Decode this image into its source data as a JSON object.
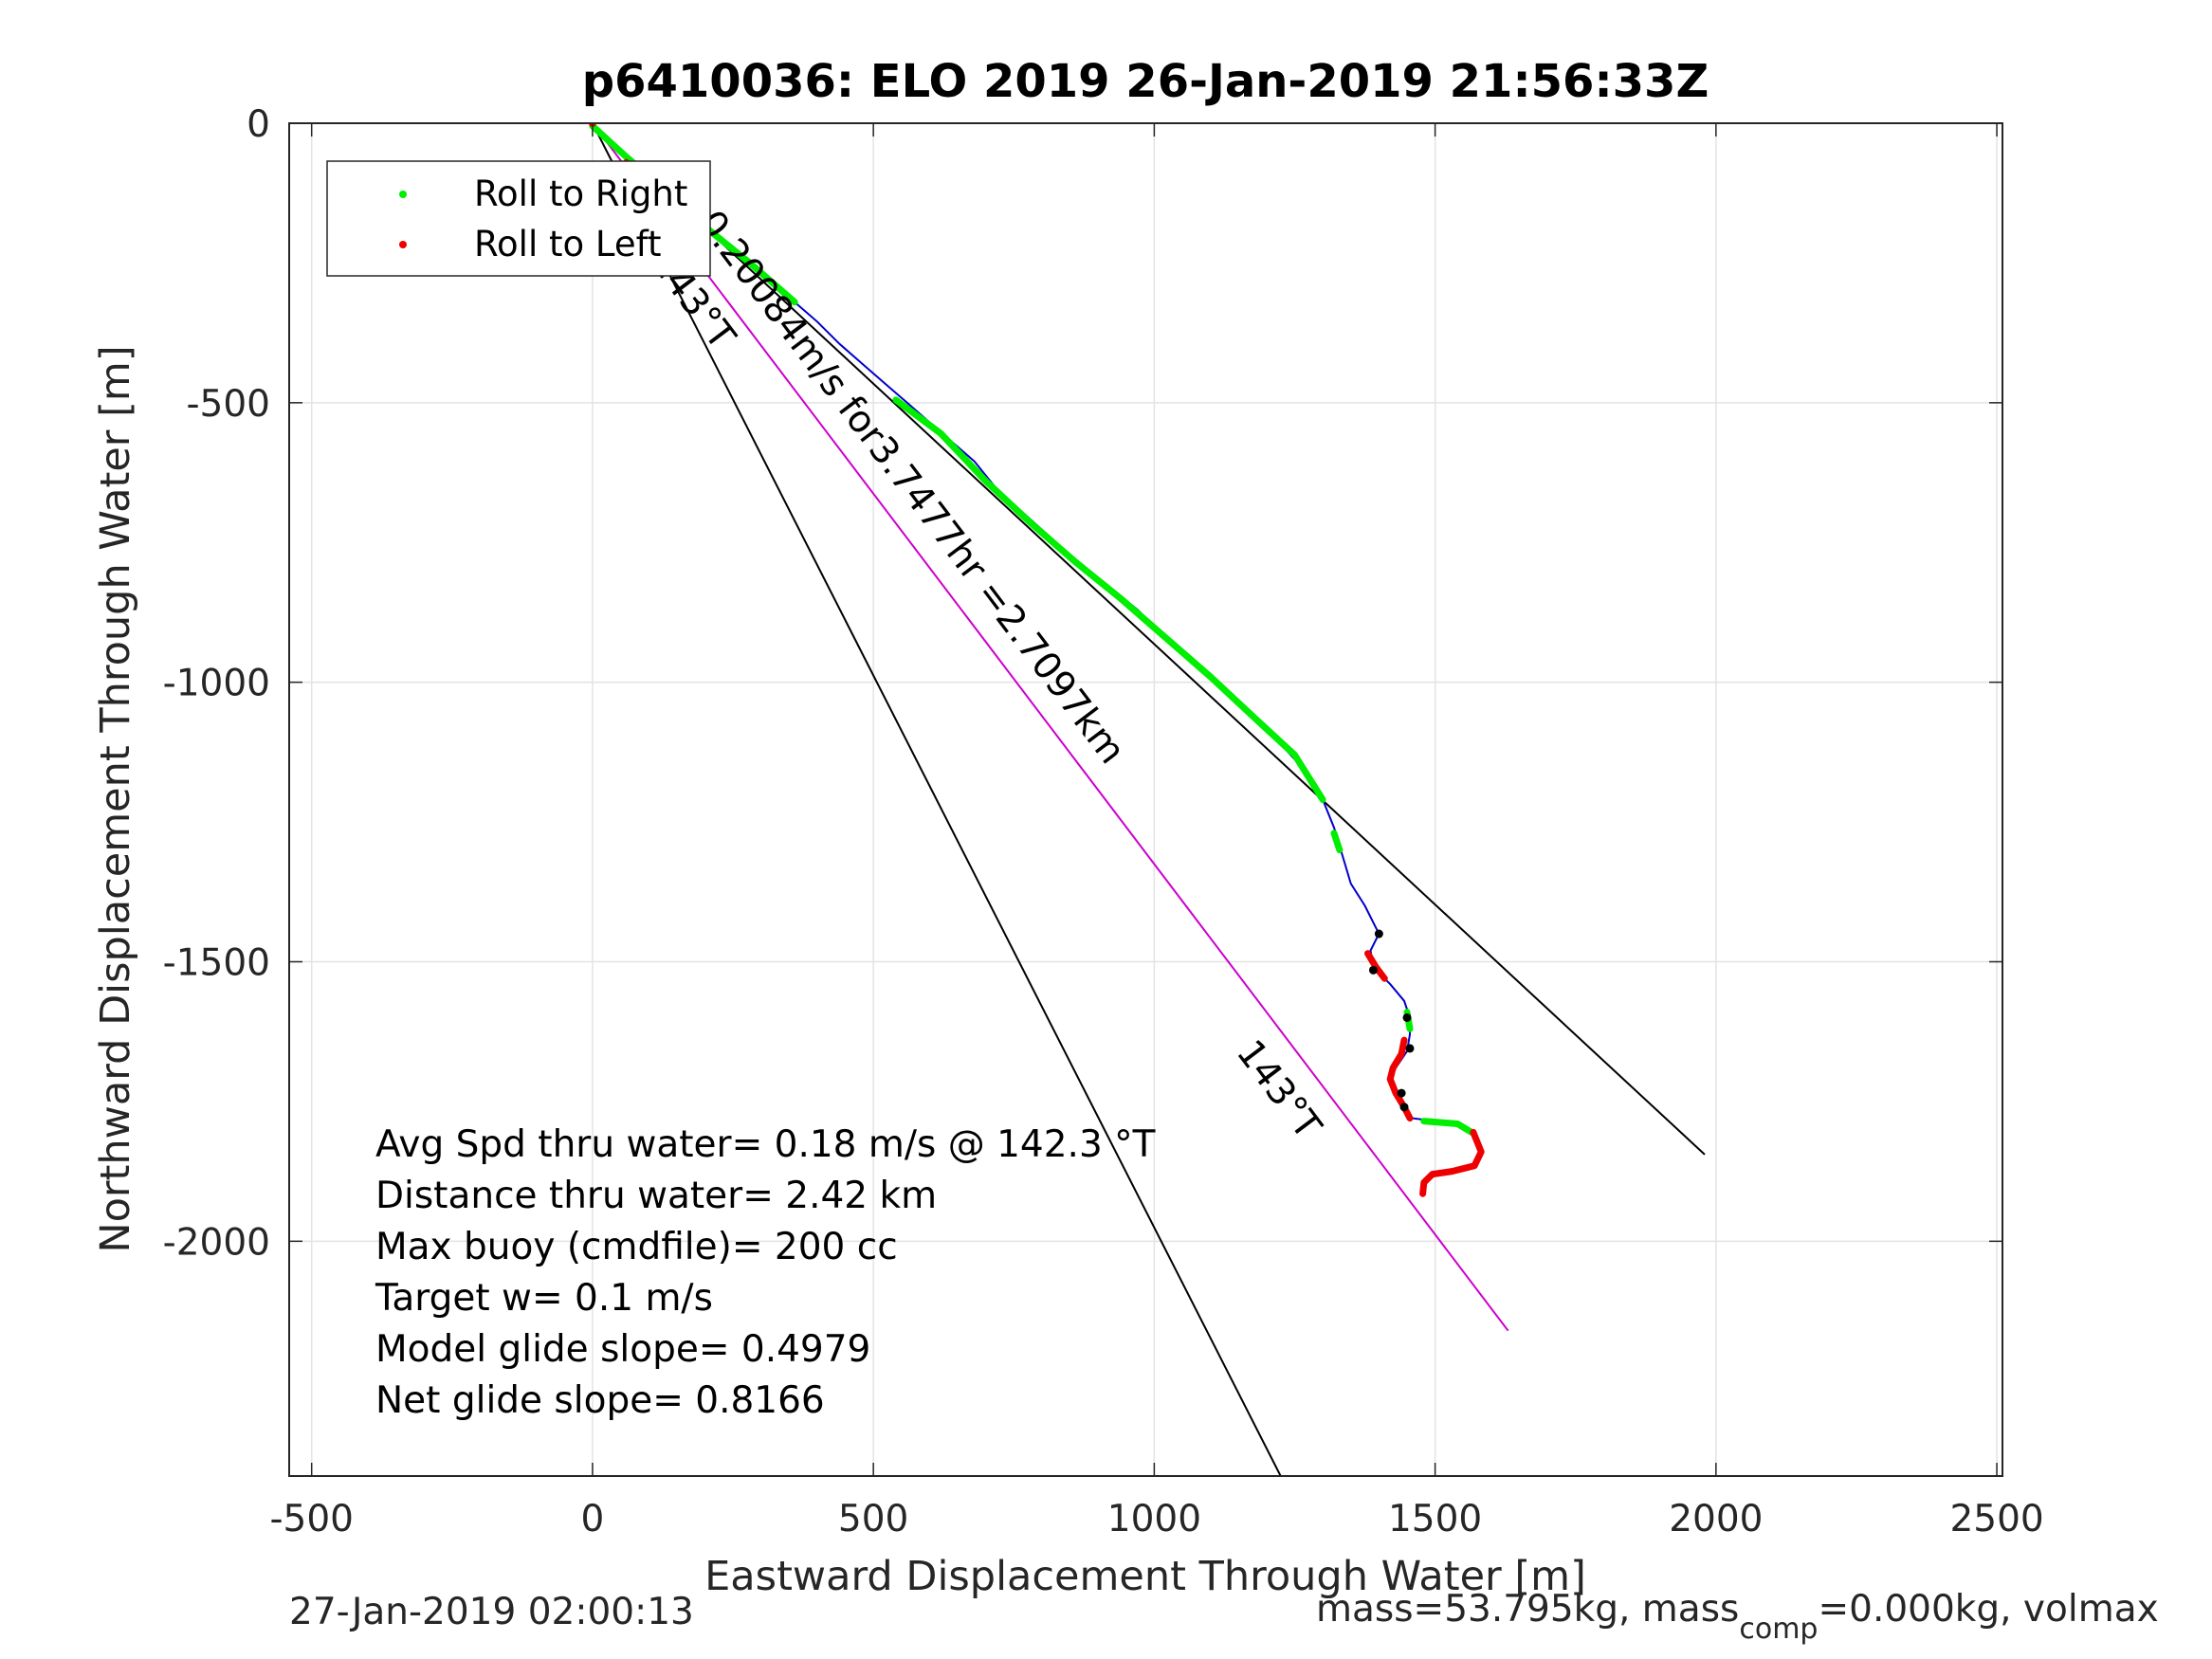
{
  "chart_data": {
    "type": "scatter",
    "title": "p6410036: ELO 2019 26-Jan-2019 21:56:33Z",
    "xlabel": "Eastward Displacement Through Water [m]",
    "ylabel": "Northward Displacement Through Water [m]",
    "xlim": [
      -540,
      2510
    ],
    "ylim": [
      -2420,
      0
    ],
    "xticks": [
      -500,
      0,
      500,
      1000,
      1500,
      2000,
      2500
    ],
    "yticks": [
      0,
      -500,
      -1000,
      -1500,
      -2000
    ],
    "xtick_labels": [
      "-500",
      "0",
      "500",
      "1000",
      "1500",
      "2000",
      "2500"
    ],
    "ytick_labels": [
      "0",
      "-500",
      "-1000",
      "-1500",
      "-2000"
    ],
    "grid": true,
    "legend": {
      "placement": "top-left",
      "entries": [
        {
          "label": "Roll to Right",
          "color": "#00ee00"
        },
        {
          "label": "Roll to Left",
          "color": "#ee0000"
        }
      ]
    },
    "track": {
      "name": "glider track",
      "color": "#0000cc",
      "points": [
        [
          0,
          0
        ],
        [
          40,
          -40
        ],
        [
          80,
          -80
        ],
        [
          120,
          -115
        ],
        [
          160,
          -150
        ],
        [
          200,
          -185
        ],
        [
          240,
          -215
        ],
        [
          280,
          -250
        ],
        [
          320,
          -285
        ],
        [
          360,
          -320
        ],
        [
          400,
          -355
        ],
        [
          440,
          -395
        ],
        [
          480,
          -430
        ],
        [
          520,
          -465
        ],
        [
          560,
          -500
        ],
        [
          600,
          -535
        ],
        [
          640,
          -570
        ],
        [
          680,
          -605
        ],
        [
          720,
          -655
        ],
        [
          770,
          -700
        ],
        [
          820,
          -745
        ],
        [
          870,
          -790
        ],
        [
          920,
          -830
        ],
        [
          970,
          -870
        ],
        [
          1020,
          -920
        ],
        [
          1070,
          -965
        ],
        [
          1120,
          -1010
        ],
        [
          1170,
          -1055
        ],
        [
          1220,
          -1105
        ],
        [
          1270,
          -1160
        ],
        [
          1300,
          -1210
        ],
        [
          1320,
          -1260
        ],
        [
          1335,
          -1310
        ],
        [
          1350,
          -1360
        ],
        [
          1375,
          -1400
        ],
        [
          1395,
          -1440
        ],
        [
          1400,
          -1450
        ],
        [
          1385,
          -1480
        ],
        [
          1390,
          -1510
        ],
        [
          1420,
          -1540
        ],
        [
          1445,
          -1570
        ],
        [
          1455,
          -1600
        ],
        [
          1455,
          -1630
        ],
        [
          1450,
          -1660
        ],
        [
          1430,
          -1690
        ],
        [
          1420,
          -1710
        ],
        [
          1430,
          -1735
        ],
        [
          1445,
          -1755
        ],
        [
          1460,
          -1780
        ],
        [
          1500,
          -1785
        ],
        [
          1540,
          -1790
        ],
        [
          1570,
          -1810
        ],
        [
          1582,
          -1840
        ],
        [
          1570,
          -1865
        ],
        [
          1530,
          -1875
        ],
        [
          1495,
          -1880
        ],
        [
          1480,
          -1895
        ],
        [
          1478,
          -1915
        ]
      ]
    },
    "roll_right_segments": [
      [
        [
          0,
          -5
        ],
        [
          60,
          -60
        ],
        [
          130,
          -120
        ],
        [
          200,
          -185
        ],
        [
          280,
          -250
        ],
        [
          360,
          -320
        ]
      ],
      [
        [
          540,
          -495
        ],
        [
          620,
          -555
        ],
        [
          700,
          -640
        ],
        [
          780,
          -715
        ],
        [
          860,
          -785
        ],
        [
          940,
          -850
        ],
        [
          1020,
          -920
        ],
        [
          1100,
          -990
        ],
        [
          1180,
          -1065
        ],
        [
          1250,
          -1130
        ],
        [
          1300,
          -1210
        ]
      ],
      [
        [
          1320,
          -1270
        ],
        [
          1330,
          -1300
        ]
      ],
      [
        [
          1450,
          -1590
        ],
        [
          1455,
          -1620
        ]
      ],
      [
        [
          1480,
          -1785
        ],
        [
          1540,
          -1790
        ],
        [
          1565,
          -1805
        ]
      ]
    ],
    "roll_left_segments": [
      [
        [
          60,
          -70
        ],
        [
          100,
          -100
        ]
      ],
      [
        [
          1380,
          -1485
        ],
        [
          1395,
          -1510
        ],
        [
          1410,
          -1530
        ]
      ],
      [
        [
          1445,
          -1640
        ],
        [
          1440,
          -1665
        ],
        [
          1425,
          -1690
        ],
        [
          1420,
          -1710
        ],
        [
          1430,
          -1735
        ],
        [
          1445,
          -1760
        ],
        [
          1455,
          -1780
        ]
      ],
      [
        [
          1568,
          -1805
        ],
        [
          1582,
          -1840
        ],
        [
          1570,
          -1865
        ],
        [
          1530,
          -1875
        ],
        [
          1495,
          -1880
        ],
        [
          1480,
          -1895
        ],
        [
          1478,
          -1915
        ]
      ]
    ],
    "dive_markers": [
      [
        1400,
        -1450
      ],
      [
        1390,
        -1515
      ],
      [
        1450,
        -1600
      ],
      [
        1455,
        -1655
      ],
      [
        1440,
        -1735
      ],
      [
        1445,
        -1760
      ]
    ],
    "lines": [
      {
        "name": "current-143T-a",
        "color": "#000000",
        "points": [
          [
            0,
            0
          ],
          [
            1225,
            -2420
          ]
        ]
      },
      {
        "name": "avg-heading",
        "color": "#000000",
        "points": [
          [
            0,
            0
          ],
          [
            1980,
            -1845
          ]
        ]
      },
      {
        "name": "current-vector",
        "color": "#cc00cc",
        "points": [
          [
            0,
            0
          ],
          [
            1630,
            -2160
          ]
        ]
      }
    ],
    "annotations": {
      "current_speed": "0.20084m/s for3.7477hr =2.7097km",
      "heading_a": "143°T",
      "heading_b": "143°T"
    },
    "stats": [
      "Avg Spd thru water=  0.18 m/s @ 142.3 °T",
      "Distance thru water=  2.42 km",
      "Max buoy (cmdfile)= 200 cc",
      "Target w= 0.1 m/s",
      "Model glide slope= 0.4979",
      "Net glide slope= 0.8166"
    ]
  },
  "footer": {
    "timestamp": "27-Jan-2019 02:00:13",
    "mass_text": "mass=53.795kg, mass",
    "mass_sub": "comp",
    "mass_rest": "=0.000kg, volmax"
  }
}
